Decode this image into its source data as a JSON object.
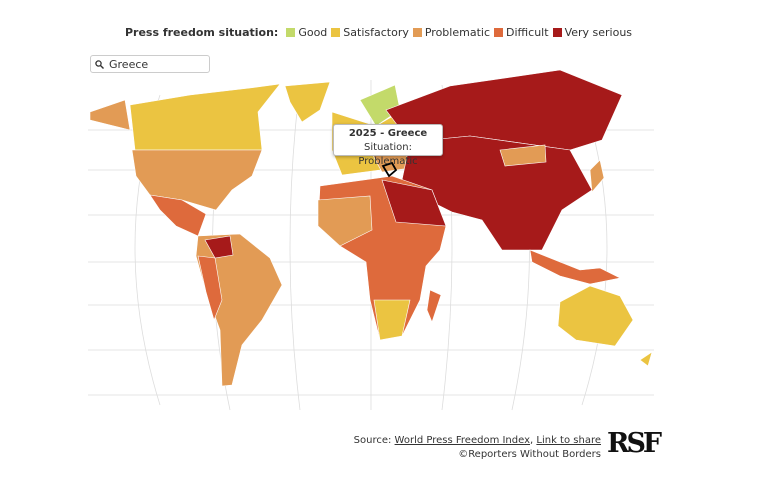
{
  "legend": {
    "title": "Press freedom situation:",
    "items": [
      {
        "label": "Good",
        "color": "#c3da6a"
      },
      {
        "label": "Satisfactory",
        "color": "#ebc441"
      },
      {
        "label": "Problematic",
        "color": "#e29b55"
      },
      {
        "label": "Difficult",
        "color": "#de6a3c"
      },
      {
        "label": "Very serious",
        "color": "#a61a1a"
      }
    ]
  },
  "search": {
    "query": "Greece"
  },
  "tooltip": {
    "title": "2025 - Greece",
    "body": "Situation: Problematic"
  },
  "footer": {
    "source_prefix": "Source:",
    "source_link": "World Press Freedom Index",
    "separator": ",",
    "share_link": "Link to share",
    "copyright": "©Reporters Without Borders"
  },
  "logo": "RSF"
}
